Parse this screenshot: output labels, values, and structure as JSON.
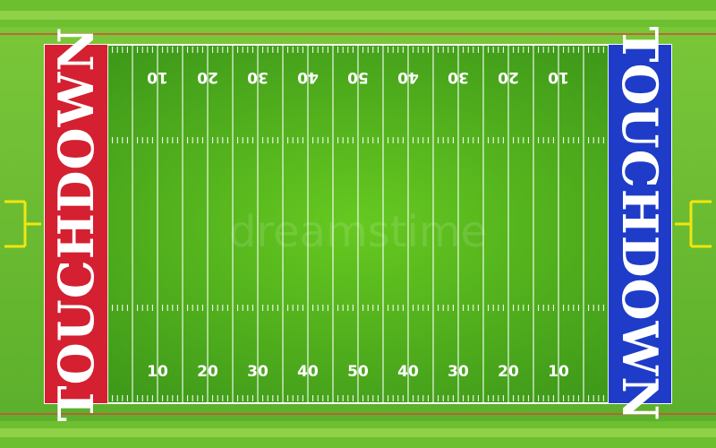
{
  "field": {
    "colors": {
      "grass_outer": "#5cae2b",
      "grass_light": "#62c41c",
      "grass_dark": "#3f9a1a",
      "stripe_border": "#9ad64a",
      "sideline_red": "#d14a3a",
      "lines": "#ffffff",
      "goalpost": "#f2e60d",
      "left_endzone": "#d42030",
      "right_endzone": "#1e3cc8"
    },
    "left_endzone": {
      "label": "TOUCHDOWN"
    },
    "right_endzone": {
      "label": "TOUCHDOWN"
    },
    "top_numbers": [
      "10",
      "20",
      "30",
      "40",
      "50",
      "40",
      "30",
      "20",
      "10"
    ],
    "bottom_numbers": [
      "10",
      "20",
      "30",
      "40",
      "50",
      "40",
      "30",
      "20",
      "10"
    ],
    "watermark": "dreamstime"
  }
}
